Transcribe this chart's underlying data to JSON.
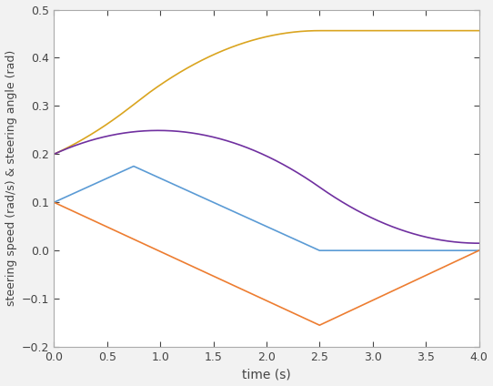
{
  "title": "",
  "xlabel": "time (s)",
  "ylabel": "steering speed (rad/s) & steering angle (rad)",
  "xlim": [
    0,
    4
  ],
  "ylim": [
    -0.2,
    0.5
  ],
  "xticks": [
    0,
    0.5,
    1,
    1.5,
    2,
    2.5,
    3,
    3.5,
    4
  ],
  "yticks": [
    -0.2,
    -0.1,
    0,
    0.1,
    0.2,
    0.3,
    0.4,
    0.5
  ],
  "blue_x": [
    0,
    0.75,
    2.5,
    4
  ],
  "blue_y": [
    0.1,
    0.175,
    0.0,
    0.0
  ],
  "orange_x": [
    0,
    2.5,
    4
  ],
  "orange_y": [
    0.1,
    -0.155,
    0.0
  ],
  "blue_color": "#5b9bd5",
  "orange_color": "#ed7d31",
  "purple_color": "#7030a0",
  "yellow_color": "#daa520",
  "delta_i": 0.2,
  "fig_width": 5.42,
  "fig_height": 4.24,
  "dpi": 100,
  "bg_color": "#f2f2f2",
  "axes_bg": "#ffffff"
}
